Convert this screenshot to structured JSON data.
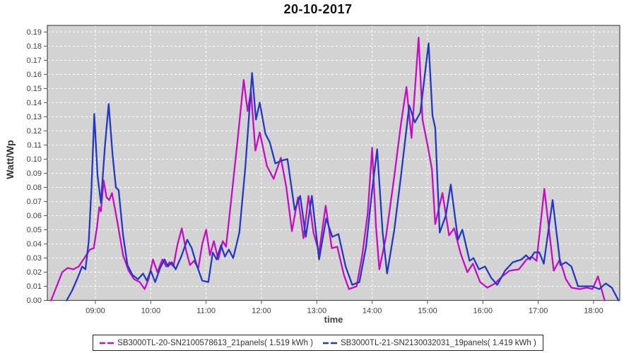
{
  "chart_data": {
    "type": "line",
    "title": "20-10-2017",
    "xlabel": "time",
    "ylabel": "Watt/Wp",
    "xlim_hours": [
      8.13,
      18.47
    ],
    "ylim": [
      0,
      0.19
    ],
    "grid": "white dashed gridlines on gray plot background",
    "legend_position": "bottom",
    "colors": {
      "plot_bg": "#d3d3d3",
      "grid": "#ffffff",
      "plot_border": "#4d4d4d",
      "tick_text": "#404040",
      "series1": "#c50dc5",
      "series2": "#2439c0"
    },
    "x_tick_hours": [
      9,
      10,
      11,
      12,
      13,
      14,
      15,
      16,
      17,
      18
    ],
    "x_tick_labels": [
      "09:00",
      "10:00",
      "11:00",
      "12:00",
      "13:00",
      "14:00",
      "15:00",
      "16:00",
      "17:00",
      "18:00"
    ],
    "y_tick_values": [
      0,
      0.01,
      0.02,
      0.03,
      0.04,
      0.05,
      0.06,
      0.07,
      0.08,
      0.09,
      0.1,
      0.11,
      0.12,
      0.13,
      0.14,
      0.15,
      0.16,
      0.17,
      0.18,
      0.19
    ],
    "y_tick_labels": [
      "0.00",
      "0.01",
      "0.02",
      "0.03",
      "0.04",
      "0.05",
      "0.06",
      "0.07",
      "0.08",
      "0.09",
      "0.10",
      "0.11",
      "0.12",
      "0.13",
      "0.14",
      "0.15",
      "0.16",
      "0.17",
      "0.18",
      "0.19"
    ],
    "series": [
      {
        "name": "SB3000TL-20-SN2100578613_21panels( 1.519 kWh )",
        "color": "#c50dc5",
        "points": [
          [
            8.2,
            0.0
          ],
          [
            8.3,
            0.01
          ],
          [
            8.4,
            0.02
          ],
          [
            8.5,
            0.023
          ],
          [
            8.6,
            0.022
          ],
          [
            8.7,
            0.024
          ],
          [
            8.8,
            0.03
          ],
          [
            8.9,
            0.036
          ],
          [
            8.97,
            0.037
          ],
          [
            9.03,
            0.052
          ],
          [
            9.07,
            0.066
          ],
          [
            9.1,
            0.063
          ],
          [
            9.15,
            0.085
          ],
          [
            9.2,
            0.073
          ],
          [
            9.25,
            0.071
          ],
          [
            9.3,
            0.076
          ],
          [
            9.4,
            0.055
          ],
          [
            9.5,
            0.032
          ],
          [
            9.6,
            0.021
          ],
          [
            9.7,
            0.015
          ],
          [
            9.8,
            0.013
          ],
          [
            9.89,
            0.008
          ],
          [
            9.96,
            0.015
          ],
          [
            10.04,
            0.029
          ],
          [
            10.12,
            0.02
          ],
          [
            10.21,
            0.029
          ],
          [
            10.28,
            0.024
          ],
          [
            10.34,
            0.027
          ],
          [
            10.41,
            0.024
          ],
          [
            10.48,
            0.039
          ],
          [
            10.56,
            0.051
          ],
          [
            10.64,
            0.035
          ],
          [
            10.71,
            0.025
          ],
          [
            10.78,
            0.028
          ],
          [
            10.86,
            0.023
          ],
          [
            10.93,
            0.04
          ],
          [
            11.0,
            0.05
          ],
          [
            11.07,
            0.032
          ],
          [
            11.14,
            0.042
          ],
          [
            11.22,
            0.029
          ],
          [
            11.3,
            0.042
          ],
          [
            11.36,
            0.038
          ],
          [
            11.45,
            0.07
          ],
          [
            11.56,
            0.11
          ],
          [
            11.68,
            0.156
          ],
          [
            11.75,
            0.134
          ],
          [
            11.81,
            0.148
          ],
          [
            11.89,
            0.106
          ],
          [
            11.97,
            0.119
          ],
          [
            12.1,
            0.095
          ],
          [
            12.22,
            0.086
          ],
          [
            12.35,
            0.101
          ],
          [
            12.45,
            0.08
          ],
          [
            12.55,
            0.049
          ],
          [
            12.66,
            0.073
          ],
          [
            12.76,
            0.044
          ],
          [
            12.85,
            0.074
          ],
          [
            12.94,
            0.048
          ],
          [
            13.04,
            0.034
          ],
          [
            13.16,
            0.067
          ],
          [
            13.27,
            0.037
          ],
          [
            13.37,
            0.038
          ],
          [
            13.49,
            0.018
          ],
          [
            13.58,
            0.008
          ],
          [
            13.72,
            0.01
          ],
          [
            13.82,
            0.032
          ],
          [
            13.92,
            0.062
          ],
          [
            14.0,
            0.108
          ],
          [
            14.07,
            0.052
          ],
          [
            14.13,
            0.022
          ],
          [
            14.25,
            0.045
          ],
          [
            14.4,
            0.088
          ],
          [
            14.52,
            0.125
          ],
          [
            14.62,
            0.151
          ],
          [
            14.71,
            0.115
          ],
          [
            14.84,
            0.186
          ],
          [
            14.91,
            0.128
          ],
          [
            15.0,
            0.11
          ],
          [
            15.08,
            0.093
          ],
          [
            15.14,
            0.054
          ],
          [
            15.27,
            0.076
          ],
          [
            15.39,
            0.046
          ],
          [
            15.48,
            0.051
          ],
          [
            15.6,
            0.033
          ],
          [
            15.72,
            0.02
          ],
          [
            15.82,
            0.026
          ],
          [
            15.95,
            0.013
          ],
          [
            16.08,
            0.009
          ],
          [
            16.22,
            0.012
          ],
          [
            16.35,
            0.017
          ],
          [
            16.48,
            0.021
          ],
          [
            16.65,
            0.022
          ],
          [
            16.79,
            0.029
          ],
          [
            16.88,
            0.031
          ],
          [
            16.97,
            0.028
          ],
          [
            17.11,
            0.079
          ],
          [
            17.28,
            0.021
          ],
          [
            17.39,
            0.029
          ],
          [
            17.5,
            0.015
          ],
          [
            17.6,
            0.009
          ],
          [
            17.75,
            0.008
          ],
          [
            17.88,
            0.009
          ],
          [
            17.98,
            0.008
          ],
          [
            18.08,
            0.017
          ],
          [
            18.2,
            0.0
          ]
        ]
      },
      {
        "name": "SB3000TL-21-SN2130032031_19panels( 1.419 kWh )",
        "color": "#2439c0",
        "points": [
          [
            8.48,
            0.0
          ],
          [
            8.58,
            0.007
          ],
          [
            8.68,
            0.016
          ],
          [
            8.76,
            0.024
          ],
          [
            8.82,
            0.022
          ],
          [
            8.88,
            0.042
          ],
          [
            8.93,
            0.08
          ],
          [
            8.98,
            0.132
          ],
          [
            9.04,
            0.088
          ],
          [
            9.1,
            0.069
          ],
          [
            9.17,
            0.108
          ],
          [
            9.24,
            0.139
          ],
          [
            9.31,
            0.103
          ],
          [
            9.37,
            0.08
          ],
          [
            9.42,
            0.078
          ],
          [
            9.5,
            0.046
          ],
          [
            9.58,
            0.025
          ],
          [
            9.67,
            0.018
          ],
          [
            9.77,
            0.015
          ],
          [
            9.86,
            0.019
          ],
          [
            9.93,
            0.014
          ],
          [
            10.0,
            0.021
          ],
          [
            10.08,
            0.013
          ],
          [
            10.17,
            0.023
          ],
          [
            10.25,
            0.029
          ],
          [
            10.31,
            0.024
          ],
          [
            10.38,
            0.027
          ],
          [
            10.45,
            0.022
          ],
          [
            10.55,
            0.031
          ],
          [
            10.66,
            0.043
          ],
          [
            10.74,
            0.037
          ],
          [
            10.83,
            0.025
          ],
          [
            10.93,
            0.014
          ],
          [
            11.04,
            0.013
          ],
          [
            11.12,
            0.034
          ],
          [
            11.19,
            0.029
          ],
          [
            11.27,
            0.039
          ],
          [
            11.34,
            0.031
          ],
          [
            11.41,
            0.036
          ],
          [
            11.49,
            0.03
          ],
          [
            11.6,
            0.048
          ],
          [
            11.71,
            0.095
          ],
          [
            11.83,
            0.161
          ],
          [
            11.9,
            0.128
          ],
          [
            11.97,
            0.14
          ],
          [
            12.07,
            0.118
          ],
          [
            12.15,
            0.112
          ],
          [
            12.25,
            0.097
          ],
          [
            12.37,
            0.099
          ],
          [
            12.47,
            0.1
          ],
          [
            12.6,
            0.064
          ],
          [
            12.7,
            0.074
          ],
          [
            12.8,
            0.045
          ],
          [
            12.91,
            0.074
          ],
          [
            13.04,
            0.029
          ],
          [
            13.17,
            0.058
          ],
          [
            13.28,
            0.045
          ],
          [
            13.39,
            0.047
          ],
          [
            13.52,
            0.024
          ],
          [
            13.64,
            0.011
          ],
          [
            13.77,
            0.013
          ],
          [
            13.89,
            0.038
          ],
          [
            14.0,
            0.078
          ],
          [
            14.09,
            0.107
          ],
          [
            14.19,
            0.048
          ],
          [
            14.27,
            0.019
          ],
          [
            14.4,
            0.05
          ],
          [
            14.52,
            0.088
          ],
          [
            14.67,
            0.138
          ],
          [
            14.77,
            0.126
          ],
          [
            14.87,
            0.133
          ],
          [
            15.02,
            0.182
          ],
          [
            15.09,
            0.131
          ],
          [
            15.14,
            0.122
          ],
          [
            15.22,
            0.048
          ],
          [
            15.33,
            0.06
          ],
          [
            15.42,
            0.082
          ],
          [
            15.55,
            0.043
          ],
          [
            15.63,
            0.05
          ],
          [
            15.76,
            0.028
          ],
          [
            15.83,
            0.03
          ],
          [
            15.93,
            0.022
          ],
          [
            16.04,
            0.024
          ],
          [
            16.15,
            0.016
          ],
          [
            16.26,
            0.011
          ],
          [
            16.4,
            0.021
          ],
          [
            16.54,
            0.027
          ],
          [
            16.7,
            0.029
          ],
          [
            16.78,
            0.032
          ],
          [
            16.85,
            0.029
          ],
          [
            16.93,
            0.034
          ],
          [
            17.02,
            0.034
          ],
          [
            17.1,
            0.026
          ],
          [
            17.26,
            0.071
          ],
          [
            17.4,
            0.025
          ],
          [
            17.5,
            0.027
          ],
          [
            17.6,
            0.024
          ],
          [
            17.72,
            0.01
          ],
          [
            17.85,
            0.01
          ],
          [
            17.98,
            0.01
          ],
          [
            18.1,
            0.008
          ],
          [
            18.22,
            0.012
          ],
          [
            18.33,
            0.009
          ],
          [
            18.45,
            0.0
          ]
        ]
      }
    ]
  }
}
